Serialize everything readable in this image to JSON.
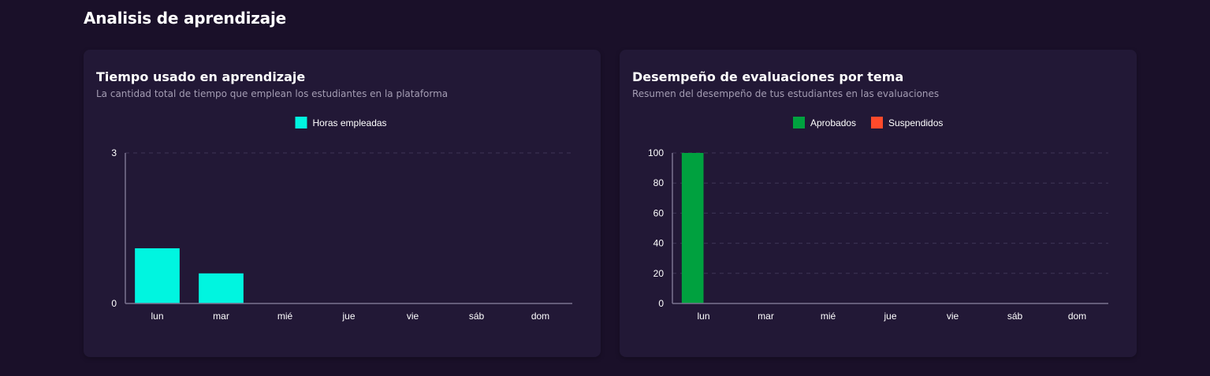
{
  "page": {
    "title": "Analisis de aprendizaje"
  },
  "chart_data": [
    {
      "type": "bar",
      "title": "Tiempo usado en aprendizaje",
      "subtitle": "La cantidad total de tiempo que emplean los estudiantes en la plataforma",
      "categories": [
        "lun",
        "mar",
        "mié",
        "jue",
        "vie",
        "sáb",
        "dom"
      ],
      "series": [
        {
          "name": "Horas empleadas",
          "color": "#00f5e0",
          "values": [
            1.1,
            0.6,
            0,
            0,
            0,
            0,
            0
          ]
        }
      ],
      "yticks": [
        0,
        3
      ],
      "ylim": [
        0,
        3
      ],
      "grid": true,
      "legend": "top-center"
    },
    {
      "type": "bar",
      "title": "Desempeño de evaluaciones por tema",
      "subtitle": "Resumen del desempeño de tus estudiantes en las evaluaciones",
      "categories": [
        "lun",
        "mar",
        "mié",
        "jue",
        "vie",
        "sáb",
        "dom"
      ],
      "series": [
        {
          "name": "Aprobados",
          "color": "#00a13f",
          "values": [
            100,
            0,
            0,
            0,
            0,
            0,
            0
          ]
        },
        {
          "name": "Suspendidos",
          "color": "#ff4a2b",
          "values": [
            0,
            0,
            0,
            0,
            0,
            0,
            0
          ]
        }
      ],
      "yticks": [
        0,
        20,
        40,
        60,
        80,
        100
      ],
      "ylim": [
        0,
        100
      ],
      "grid": true,
      "legend": "top-center"
    }
  ]
}
